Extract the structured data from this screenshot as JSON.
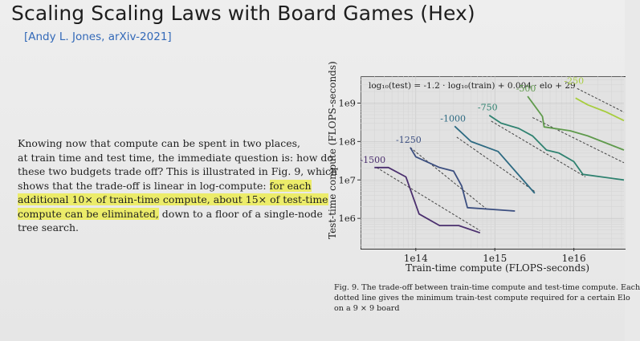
{
  "slide": {
    "title": "Scaling Scaling Laws with Board Games (Hex)",
    "citation": "[Andy L. Jones, arXiv-2021]",
    "paragraph": {
      "line1": "Knowing now that compute can be spent in two places,",
      "line2": "at train time and test time, the immediate question is: how do",
      "line3": "these two budgets trade off? This is illustrated in Fig. 9, which",
      "line4_plain": "shows that the trade-off is linear in log-compute: ",
      "line4_hl": "for each",
      "line5_hl": "additional 10× of train-time compute, about 15× of test-time",
      "line6_hl": "compute can be eliminated,",
      "line6_plain": " down to a floor of a single-node",
      "line7": "tree search."
    },
    "caption": {
      "line1": "Fig. 9.  The trade-off between train-time compute and test-time compute. Each",
      "line2": "dotted line gives the minimum train-test compute required for a certain Elo",
      "line3": "on a 9 × 9 board"
    }
  },
  "chart_data": {
    "type": "line",
    "title": "",
    "formula": "log₁₀(test) = -1.2 · log₁₀(train) + 0.004 · elo + 29",
    "xlabel": "Train-time compute (FLOPS-seconds)",
    "ylabel": "Test-time compute (FLOPS-seconds)",
    "xscale": "log",
    "yscale": "log",
    "xlim": [
      20000000000000.0,
      4.3e+16
    ],
    "ylim": [
      170000.0,
      5000000000.0
    ],
    "xticks": [
      {
        "value": 100000000000000.0,
        "label": "1e14"
      },
      {
        "value": 1000000000000000.0,
        "label": "1e15"
      },
      {
        "value": 1e+16,
        "label": "1e16"
      }
    ],
    "yticks": [
      {
        "value": 1000000.0,
        "label": "1e6"
      },
      {
        "value": 10000000.0,
        "label": "1e7"
      },
      {
        "value": 100000000.0,
        "label": "1e8"
      },
      {
        "value": 1000000000.0,
        "label": "1e9"
      }
    ],
    "grid": true,
    "series": [
      {
        "name": "-1500",
        "color": "#4b2f6e",
        "x": [
          30000000000000.0,
          45000000000000.0,
          75000000000000.0,
          110000000000000.0,
          200000000000000.0,
          350000000000000.0,
          650000000000000.0
        ],
        "y": [
          21000000.0,
          21000000.0,
          12000000.0,
          1300000.0,
          650000.0,
          650000.0,
          420000.0
        ],
        "fit": {
          "x": [
            32000000000000.0,
            650000000000000.0
          ],
          "y": [
            21000000.0,
            480000.0
          ]
        }
      },
      {
        "name": "-1250",
        "color": "#3c4f80",
        "x": [
          85000000000000.0,
          100000000000000.0,
          200000000000000.0,
          300000000000000.0,
          380000000000000.0,
          450000000000000.0,
          1800000000000000.0
        ],
        "y": [
          70000000.0,
          40000000.0,
          21000000.0,
          17000000.0,
          7000000.0,
          1900000.0,
          1550000.0
        ],
        "fit": {
          "x": [
            85000000000000.0,
            800000000000000.0
          ],
          "y": [
            70000000.0,
            1700000.0
          ]
        }
      },
      {
        "name": "-1000",
        "color": "#2d6a82",
        "x": [
          310000000000000.0,
          500000000000000.0,
          1100000000000000.0,
          3200000000000000.0
        ],
        "y": [
          250000000.0,
          100000000.0,
          55000000.0,
          4500000.0
        ],
        "fit": {
          "x": [
            330000000000000.0,
            3200000000000000.0
          ],
          "y": [
            130000000.0,
            5000000.0
          ]
        }
      },
      {
        "name": "-750",
        "color": "#2f8270",
        "x": [
          850000000000000.0,
          1200000000000000.0,
          2000000000000000.0,
          3000000000000000.0,
          4500000000000000.0,
          6500000000000000.0,
          1e+16,
          1.3e+16,
          4.3e+16
        ],
        "y": [
          480000000.0,
          300000000.0,
          220000000.0,
          140000000.0,
          60000000.0,
          50000000.0,
          30000000.0,
          14000000.0,
          10000000.0
        ],
        "fit": {
          "x": [
            900000000000000.0,
            1.4e+16
          ],
          "y": [
            340000000.0,
            12000000.0
          ]
        }
      },
      {
        "name": "-500",
        "color": "#5f9a4c",
        "x": [
          2600000000000000.0,
          4000000000000000.0,
          4200000000000000.0,
          9000000000000000.0,
          1.5e+16,
          4.3e+16
        ],
        "y": [
          1500000000.0,
          450000000.0,
          240000000.0,
          190000000.0,
          140000000.0,
          60000000.0
        ],
        "fit": {
          "x": [
            3000000000000000.0,
            4.3e+16
          ],
          "y": [
            420000000.0,
            28000000.0
          ]
        }
      },
      {
        "name": "-250",
        "color": "#a7cd3e",
        "x": [
          1.05e+16,
          1.5e+16,
          2.5e+16,
          4.3e+16
        ],
        "y": [
          1350000000.0,
          900000000.0,
          600000000.0,
          350000000.0
        ],
        "fit": {
          "x": [
            1.1e+16,
            4.3e+16
          ],
          "y": [
            2400000000.0,
            580000000.0
          ]
        }
      }
    ]
  }
}
